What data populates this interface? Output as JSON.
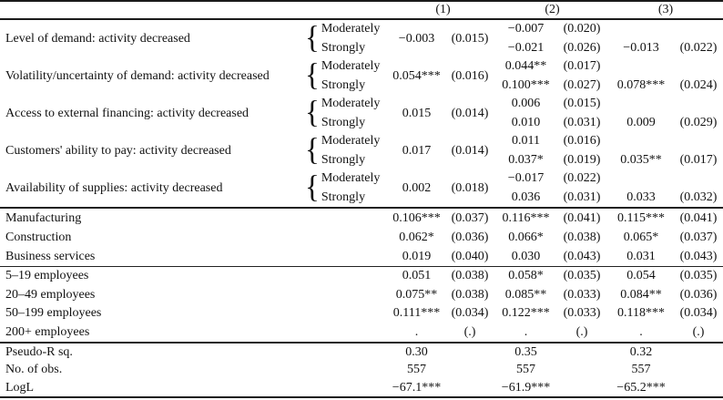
{
  "table": {
    "headers": [
      "(1)",
      "(2)",
      "(3)"
    ],
    "paired_rows": [
      {
        "label": "Level of demand: activity decreased",
        "cond1": "Moderately",
        "cond2": "Strongly",
        "m1_coef": "−0.003",
        "m1_se": "(0.015)",
        "m2_coef1": "−0.007",
        "m2_se1": "(0.020)",
        "m2_coef2": "−0.021",
        "m2_se2": "(0.026)",
        "m3_coef": "−0.013",
        "m3_se": "(0.022)"
      },
      {
        "label": "Volatility/uncertainty of demand: activity decreased",
        "cond1": "Moderately",
        "cond2": "Strongly",
        "m1_coef": "0.054***",
        "m1_se": "(0.016)",
        "m2_coef1": "0.044**",
        "m2_se1": "(0.017)",
        "m2_coef2": "0.100***",
        "m2_se2": "(0.027)",
        "m3_coef": "0.078***",
        "m3_se": "(0.024)"
      },
      {
        "label": "Access to external financing: activity decreased",
        "cond1": "Moderately",
        "cond2": "Strongly",
        "m1_coef": "0.015",
        "m1_se": "(0.014)",
        "m2_coef1": "0.006",
        "m2_se1": "(0.015)",
        "m2_coef2": "0.010",
        "m2_se2": "(0.031)",
        "m3_coef": "0.009",
        "m3_se": "(0.029)"
      },
      {
        "label": "Customers' ability to pay: activity decreased",
        "cond1": "Moderately",
        "cond2": "Strongly",
        "m1_coef": "0.017",
        "m1_se": "(0.014)",
        "m2_coef1": "0.011",
        "m2_se1": "(0.016)",
        "m2_coef2": "0.037*",
        "m2_se2": "(0.019)",
        "m3_coef": "0.035**",
        "m3_se": "(0.017)"
      },
      {
        "label": "Availability of supplies: activity decreased",
        "cond1": "Moderately",
        "cond2": "Strongly",
        "m1_coef": "0.002",
        "m1_se": "(0.018)",
        "m2_coef1": "−0.017",
        "m2_se1": "(0.022)",
        "m2_coef2": "0.036",
        "m2_se2": "(0.031)",
        "m3_coef": "0.033",
        "m3_se": "(0.032)"
      }
    ],
    "sector_rows": [
      {
        "label": "Manufacturing",
        "c1": "0.106***",
        "s1": "(0.037)",
        "c2": "0.116***",
        "s2": "(0.041)",
        "c3": "0.115***",
        "s3": "(0.041)"
      },
      {
        "label": "Construction",
        "c1": "0.062*",
        "s1": "(0.036)",
        "c2": "0.066*",
        "s2": "(0.038)",
        "c3": "0.065*",
        "s3": "(0.037)"
      },
      {
        "label": "Business services",
        "c1": "0.019",
        "s1": "(0.040)",
        "c2": "0.030",
        "s2": "(0.043)",
        "c3": "0.031",
        "s3": "(0.043)"
      }
    ],
    "size_rows": [
      {
        "label": "5–19 employees",
        "c1": "0.051",
        "s1": "(0.038)",
        "c2": "0.058*",
        "s2": "(0.035)",
        "c3": "0.054",
        "s3": "(0.035)"
      },
      {
        "label": "20–49 employees",
        "c1": "0.075**",
        "s1": "(0.038)",
        "c2": "0.085**",
        "s2": "(0.033)",
        "c3": "0.084**",
        "s3": "(0.036)"
      },
      {
        "label": "50–199 employees",
        "c1": "0.111***",
        "s1": "(0.034)",
        "c2": "0.122***",
        "s2": "(0.033)",
        "c3": "0.118***",
        "s3": "(0.034)"
      },
      {
        "label": "200+ employees",
        "c1": ".",
        "s1": "(.)",
        "c2": ".",
        "s2": "(.)",
        "c3": ".",
        "s3": "(.)"
      }
    ],
    "summary_rows": [
      {
        "label": "Pseudo-R sq.",
        "v1": "0.30",
        "v2": "0.35",
        "v3": "0.32"
      },
      {
        "label": "No. of obs.",
        "v1": "557",
        "v2": "557",
        "v3": "557"
      },
      {
        "label": "LogL",
        "v1": "−67.1***",
        "v2": "−61.9***",
        "v3": "−65.2***"
      }
    ]
  }
}
